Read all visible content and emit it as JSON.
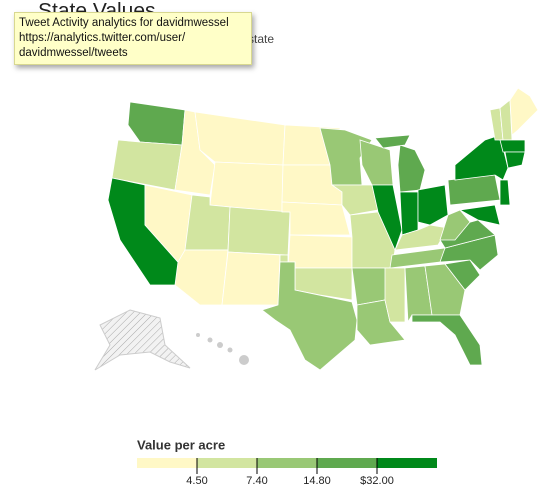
{
  "title": "State Values",
  "subtitle": "by state",
  "tooltip": [
    "Tweet Activity analytics for davidmwessel",
    "https://analytics.twitter.com/user/",
    "davidmwessel/tweets"
  ],
  "legend": {
    "title": "Value per acre",
    "colors": [
      "#fff8c6",
      "#d2e5a0",
      "#99c875",
      "#5fa94f",
      "#00891a"
    ],
    "ticks": [
      {
        "value": 4.5,
        "label": "4.50"
      },
      {
        "value": 7.4,
        "label": "7.40"
      },
      {
        "value": 14.8,
        "label": "14.80"
      },
      {
        "value": 32,
        "label": "$32.00"
      }
    ]
  }
}
